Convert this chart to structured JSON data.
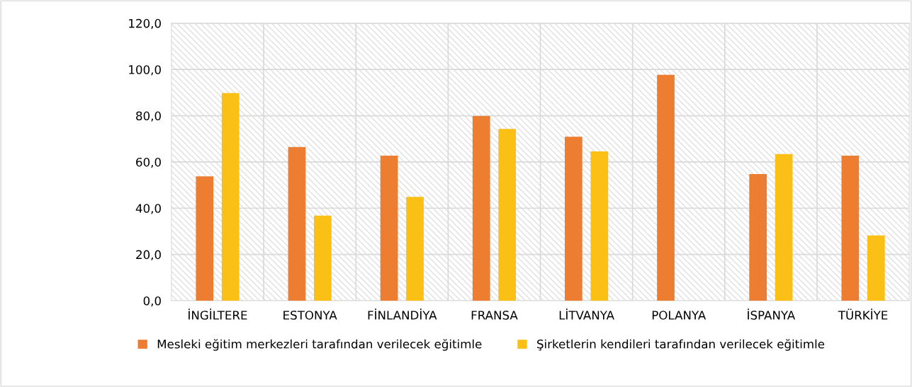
{
  "chart_data": {
    "type": "bar",
    "categories": [
      "İNGİLTERE",
      "ESTONYA",
      "FİNLANDİYA",
      "FRANSA",
      "LİTVANYA",
      "POLANYA",
      "İSPANYA",
      "TÜRKİYE"
    ],
    "series": [
      {
        "name": "Mesleki eğitim merkezleri tarafından verilecek eğitimle",
        "color": "#ed7d31",
        "values": [
          53.8,
          66.5,
          62.7,
          79.9,
          70.9,
          97.7,
          54.8,
          62.7
        ]
      },
      {
        "name": "Şirketlerin kendileri tarafından verilecek eğitimle",
        "color": "#fbc015",
        "values": [
          89.8,
          36.8,
          44.9,
          74.3,
          64.6,
          null,
          63.4,
          28.2
        ]
      }
    ],
    "ylim": [
      0,
      120
    ],
    "yticks": [
      {
        "value": 0,
        "label": "0,0"
      },
      {
        "value": 20,
        "label": "20,0"
      },
      {
        "value": 40,
        "label": "40,0"
      },
      {
        "value": 60,
        "label": "60,0"
      },
      {
        "value": 80,
        "label": "80,0"
      },
      {
        "value": 100,
        "label": "100,0"
      },
      {
        "value": 120,
        "label": "120,0"
      }
    ],
    "grid": true,
    "legend": "bottom"
  }
}
